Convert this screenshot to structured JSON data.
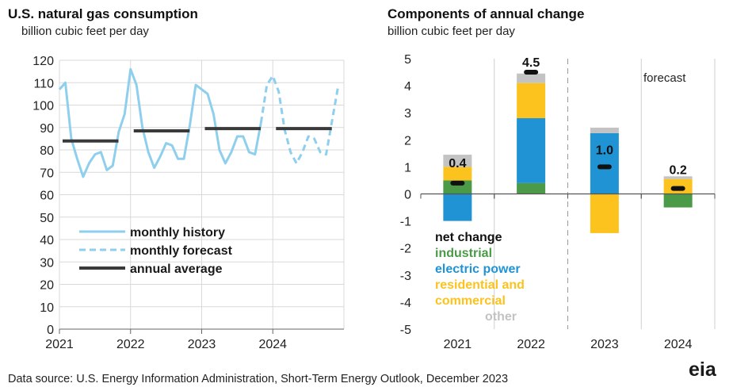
{
  "footer": {
    "source": "Data source: U.S. Energy Information Administration, Short-Term Energy Outlook, December 2023",
    "logo": "eia"
  },
  "chart_data": [
    {
      "type": "line",
      "title": "U.S. natural gas consumption",
      "subtitle": "billion cubic feet per day",
      "ylim": [
        0,
        120
      ],
      "yticks": [
        "0",
        "10",
        "20",
        "30",
        "40",
        "50",
        "60",
        "70",
        "80",
        "90",
        "100",
        "110",
        "120"
      ],
      "xlim": [
        2021,
        2025
      ],
      "xticks": [
        "2021",
        "2022",
        "2023",
        "2024"
      ],
      "grid": true,
      "legend_position": "lower-left",
      "colors": {
        "history": "#8fcfee",
        "forecast": "#8fcfee",
        "annual": "#3a3a3a"
      },
      "series": [
        {
          "name": "monthly history",
          "style": "solid",
          "x": [
            "2021-01",
            "2021-02",
            "2021-03",
            "2021-04",
            "2021-05",
            "2021-06",
            "2021-07",
            "2021-08",
            "2021-09",
            "2021-10",
            "2021-11",
            "2021-12",
            "2022-01",
            "2022-02",
            "2022-03",
            "2022-04",
            "2022-05",
            "2022-06",
            "2022-07",
            "2022-08",
            "2022-09",
            "2022-10",
            "2022-11",
            "2022-12",
            "2023-01",
            "2023-02",
            "2023-03",
            "2023-04",
            "2023-05",
            "2023-06",
            "2023-07",
            "2023-08",
            "2023-09",
            "2023-10",
            "2023-11"
          ],
          "values": [
            107,
            110,
            85,
            76,
            68,
            74,
            78,
            79,
            71,
            73,
            88,
            96,
            116,
            109,
            90,
            79,
            72,
            77,
            83,
            82,
            76,
            76,
            91,
            109,
            107,
            105,
            96,
            80,
            74,
            79,
            86,
            86,
            79,
            78,
            92
          ]
        },
        {
          "name": "monthly forecast",
          "style": "dashed",
          "x": [
            "2023-11",
            "2023-12",
            "2024-01",
            "2024-02",
            "2024-03",
            "2024-04",
            "2024-05",
            "2024-06",
            "2024-07",
            "2024-08",
            "2024-09",
            "2024-10",
            "2024-11",
            "2024-12"
          ],
          "values": [
            92,
            109,
            113,
            106,
            89,
            79,
            74,
            79,
            86,
            85,
            79,
            78,
            93,
            108
          ]
        },
        {
          "name": "annual average",
          "style": "solid",
          "x": [
            2021,
            2022,
            2023,
            2024
          ],
          "values": [
            84,
            88.5,
            89.5,
            89.5
          ]
        }
      ]
    },
    {
      "type": "bar",
      "stacked": true,
      "title": "Components of annual change",
      "subtitle": "billion cubic feet per day",
      "categories": [
        "2021",
        "2022",
        "2023",
        "2024"
      ],
      "ylim": [
        -5,
        5
      ],
      "yticks": [
        "-5",
        "-4",
        "-3",
        "-2",
        "-1",
        "0",
        "1",
        "2",
        "3",
        "4",
        "5"
      ],
      "forecast_label": "forecast",
      "series": [
        {
          "name": "industrial",
          "color": "#4b9a47",
          "values": [
            0.5,
            0.4,
            0,
            -0.5
          ]
        },
        {
          "name": "electric power",
          "color": "#1f93d4",
          "values": [
            -1.0,
            2.4,
            2.25,
            0
          ]
        },
        {
          "name": "residential and commercial",
          "color": "#fcc31e",
          "values": [
            0.5,
            1.3,
            -1.45,
            0.55
          ]
        },
        {
          "name": "other",
          "color": "#c3c3c3",
          "values": [
            0.45,
            0.35,
            0.2,
            0.1
          ]
        }
      ],
      "net_change": {
        "name": "net change",
        "color": "#111111",
        "values": [
          0.4,
          4.5,
          1.0,
          0.2
        ],
        "labels": [
          "0.4",
          "4.5",
          "1.0",
          "0.2"
        ]
      },
      "legend_title": "net change",
      "legend_items": [
        "industrial",
        "electric power",
        "residential and",
        "commercial",
        "other"
      ]
    }
  ]
}
